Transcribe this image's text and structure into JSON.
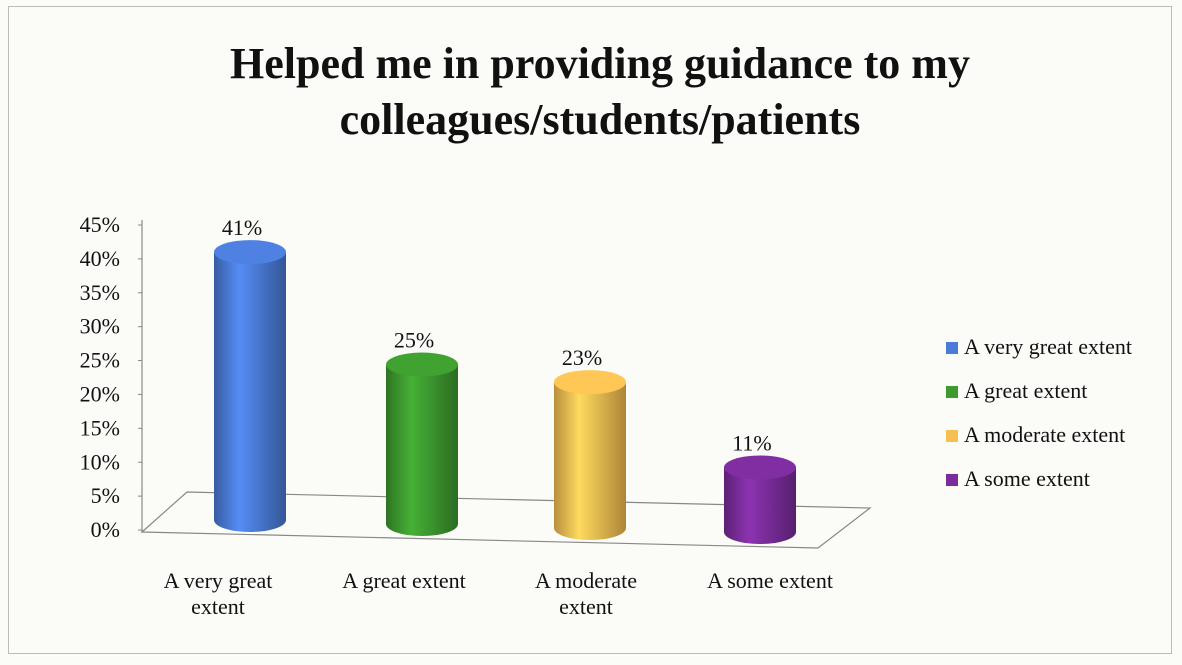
{
  "chart_data": {
    "type": "bar",
    "title": "Helped me in providing guidance to my colleagues/students/patients",
    "categories": [
      "A very great extent",
      "A great extent",
      "A moderate extent",
      "A some extent"
    ],
    "values": [
      41,
      25,
      23,
      11
    ],
    "value_labels": [
      "41%",
      "25%",
      "23%",
      "11%"
    ],
    "colors": [
      "#4a7bd6",
      "#3d9a2f",
      "#f7be52",
      "#7b2c9b"
    ],
    "ylim": [
      0,
      45
    ],
    "yticks": [
      {
        "value": 0,
        "label": "0%"
      },
      {
        "value": 5,
        "label": "5%"
      },
      {
        "value": 10,
        "label": "10%"
      },
      {
        "value": 15,
        "label": "15%"
      },
      {
        "value": 20,
        "label": "20%"
      },
      {
        "value": 25,
        "label": "25%"
      },
      {
        "value": 30,
        "label": "30%"
      },
      {
        "value": 35,
        "label": "35%"
      },
      {
        "value": 40,
        "label": "40%"
      },
      {
        "value": 45,
        "label": "45%"
      }
    ],
    "legend": "right"
  }
}
